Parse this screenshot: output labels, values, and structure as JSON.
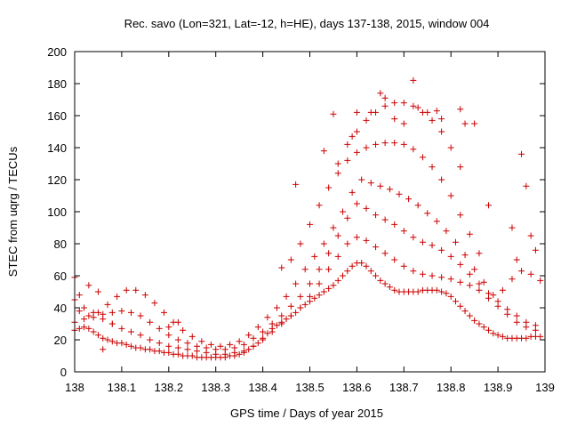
{
  "chart_data": {
    "type": "scatter",
    "title": "Rec. savo (Lon=321, Lat=-12, h=HE), days 137-138, 2015, window 004",
    "xlabel": "GPS time / Days of year 2015",
    "ylabel": "STEC from uqrg / TECUs",
    "xlim": [
      138,
      139
    ],
    "ylim": [
      0,
      200
    ],
    "x_ticks": [
      138,
      138.1,
      138.2,
      138.3,
      138.4,
      138.5,
      138.6,
      138.7,
      138.8,
      138.9,
      139
    ],
    "x_tick_labels": [
      "138",
      "138.1",
      "138.2",
      "138.3",
      "138.4",
      "138.5",
      "138.6",
      "138.7",
      "138.8",
      "138.9",
      "139"
    ],
    "y_ticks": [
      0,
      20,
      40,
      60,
      80,
      100,
      120,
      140,
      160,
      180,
      200
    ],
    "y_tick_labels": [
      "0",
      "20",
      "40",
      "60",
      "80",
      "100",
      "120",
      "140",
      "160",
      "180",
      "200"
    ],
    "grid": false,
    "marker": "+",
    "color": "#cc0000",
    "series": [
      {
        "x": [
          138.0,
          138.01,
          138.02,
          138.03,
          138.04,
          138.05,
          138.06,
          138.07,
          138.08,
          138.09,
          138.1,
          138.11,
          138.12,
          138.13,
          138.14,
          138.15,
          138.16,
          138.17,
          138.18,
          138.19,
          138.2,
          138.21,
          138.22,
          138.23,
          138.24,
          138.25,
          138.26,
          138.27,
          138.28,
          138.29,
          138.3,
          138.31,
          138.32,
          138.33,
          138.34,
          138.35,
          138.36,
          138.37,
          138.38,
          138.39,
          138.4,
          138.41,
          138.42,
          138.43,
          138.44,
          138.45,
          138.46,
          138.47,
          138.48,
          138.49,
          138.5,
          138.51,
          138.52,
          138.53,
          138.54,
          138.55,
          138.56,
          138.57,
          138.58,
          138.59,
          138.6,
          138.61,
          138.62,
          138.63,
          138.64,
          138.65,
          138.66,
          138.67,
          138.68,
          138.69,
          138.7,
          138.71,
          138.72,
          138.73,
          138.74,
          138.75,
          138.76,
          138.77,
          138.78,
          138.79,
          138.8,
          138.81,
          138.82,
          138.83,
          138.84,
          138.85,
          138.86,
          138.87,
          138.88,
          138.89,
          138.9,
          138.91,
          138.92,
          138.93,
          138.94,
          138.95,
          138.96,
          138.97,
          138.98,
          138.99
        ],
        "y": [
          26,
          27,
          28,
          27,
          25,
          23,
          21,
          20,
          19,
          18,
          18,
          17,
          16,
          15,
          15,
          14,
          14,
          13,
          13,
          12,
          12,
          11,
          11,
          10,
          10,
          10,
          9,
          9,
          9,
          9,
          9,
          9,
          9,
          10,
          10,
          11,
          12,
          14,
          16,
          18,
          21,
          24,
          27,
          29,
          31,
          33,
          35,
          37,
          40,
          42,
          44,
          46,
          48,
          50,
          52,
          54,
          57,
          60,
          63,
          66,
          68,
          68,
          66,
          63,
          60,
          57,
          55,
          53,
          51,
          50,
          50,
          50,
          50,
          50,
          51,
          51,
          51,
          51,
          50,
          49,
          47,
          44,
          41,
          38,
          35,
          32,
          30,
          28,
          26,
          24,
          23,
          22,
          21,
          21,
          21,
          21,
          21,
          22,
          22,
          22
        ]
      },
      {
        "x": [
          138.0,
          138.02,
          138.04,
          138.06,
          138.08,
          138.1,
          138.12,
          138.14,
          138.16,
          138.18,
          138.2,
          138.22,
          138.24,
          138.26,
          138.28,
          138.3,
          138.32,
          138.34,
          138.36,
          138.38,
          138.4,
          138.42,
          138.44,
          138.46,
          138.48,
          138.5,
          138.52,
          138.54,
          138.56,
          138.58,
          138.6,
          138.62,
          138.64,
          138.66,
          138.68,
          138.7,
          138.72,
          138.74,
          138.76,
          138.78,
          138.8,
          138.82,
          138.84,
          138.86,
          138.88,
          138.9,
          138.92,
          138.94,
          138.96,
          138.98
        ],
        "y": [
          31,
          33,
          34,
          33,
          30,
          27,
          25,
          23,
          20,
          18,
          16,
          15,
          14,
          13,
          12,
          11,
          11,
          12,
          13,
          16,
          20,
          25,
          30,
          35,
          40,
          47,
          55,
          64,
          72,
          80,
          84,
          82,
          78,
          74,
          70,
          66,
          63,
          61,
          60,
          59,
          58,
          56,
          54,
          51,
          46,
          41,
          36,
          31,
          28,
          26
        ]
      },
      {
        "x": [
          138.0,
          138.02,
          138.04,
          138.06,
          138.08,
          138.1,
          138.12,
          138.14,
          138.16,
          138.18,
          138.2,
          138.22,
          138.24,
          138.26,
          138.28,
          138.3,
          138.32,
          138.34,
          138.36,
          138.38,
          138.4,
          138.42,
          138.44,
          138.46,
          138.48,
          138.5,
          138.52,
          138.54,
          138.56,
          138.58,
          138.6,
          138.62,
          138.64,
          138.66,
          138.68,
          138.7,
          138.72,
          138.74,
          138.76,
          138.78,
          138.8,
          138.82,
          138.84,
          138.86,
          138.88,
          138.9,
          138.92,
          138.94,
          138.96,
          138.98
        ],
        "y": [
          45,
          40,
          37,
          36,
          37,
          38,
          37,
          35,
          31,
          27,
          23,
          20,
          18,
          16,
          15,
          14,
          14,
          15,
          17,
          21,
          25,
          30,
          35,
          41,
          47,
          55,
          64,
          74,
          85,
          96,
          105,
          102,
          98,
          95,
          92,
          88,
          84,
          81,
          79,
          76,
          72,
          67,
          61,
          55,
          49,
          44,
          39,
          35,
          31,
          29
        ]
      },
      {
        "x": [
          138.01,
          138.03,
          138.05,
          138.07,
          138.09,
          138.11,
          138.13,
          138.15,
          138.17,
          138.19,
          138.21,
          138.23,
          138.25,
          138.27,
          138.29,
          138.31,
          138.33,
          138.35,
          138.37,
          138.39,
          138.41,
          138.43,
          138.45,
          138.47,
          138.49,
          138.51,
          138.53,
          138.55,
          138.57,
          138.59,
          138.61,
          138.63,
          138.65,
          138.67,
          138.69,
          138.71,
          138.73,
          138.75,
          138.77,
          138.79,
          138.81,
          138.83,
          138.85,
          138.87,
          138.89
        ],
        "y": [
          38,
          35,
          37,
          42,
          47,
          51,
          51,
          48,
          43,
          37,
          31,
          26,
          22,
          19,
          17,
          16,
          17,
          19,
          23,
          28,
          34,
          40,
          47,
          55,
          64,
          72,
          80,
          90,
          100,
          112,
          120,
          118,
          116,
          114,
          111,
          108,
          104,
          99,
          94,
          88,
          81,
          73,
          64,
          56,
          48
        ]
      },
      {
        "x": [
          138.44,
          138.46,
          138.48,
          138.5,
          138.52,
          138.54,
          138.56,
          138.58,
          138.6,
          138.62,
          138.64,
          138.66,
          138.68,
          138.7,
          138.72,
          138.74,
          138.76,
          138.78,
          138.8,
          138.82,
          138.84,
          138.86
        ],
        "y": [
          65,
          70,
          80,
          92,
          104,
          115,
          124,
          132,
          137,
          140,
          142,
          143,
          143,
          142,
          139,
          134,
          128,
          120,
          110,
          98,
          86,
          74
        ]
      },
      {
        "x": [
          138.56,
          138.58,
          138.6,
          138.62,
          138.64,
          138.66,
          138.68,
          138.7,
          138.72,
          138.74,
          138.76,
          138.78,
          138.8,
          138.82
        ],
        "y": [
          130,
          142,
          150,
          157,
          162,
          166,
          168,
          168,
          166,
          162,
          157,
          150,
          140,
          128
        ]
      },
      {
        "x": [
          138.47,
          138.53,
          138.55,
          138.59,
          138.6,
          138.63,
          138.65,
          138.66,
          138.68,
          138.7,
          138.72,
          138.73,
          138.75,
          138.77,
          138.78,
          138.82,
          138.83,
          138.85,
          138.88,
          138.93,
          138.94,
          138.95,
          138.96,
          138.97,
          138.98
        ],
        "y": [
          117,
          138,
          161,
          147,
          162,
          162,
          174,
          171,
          158,
          155,
          182,
          165,
          162,
          163,
          158,
          164,
          155,
          155,
          104,
          90,
          70,
          136,
          116,
          85,
          76
        ]
      },
      {
        "x": [
          138.0,
          138.01,
          138.03,
          138.05,
          138.06,
          138.08,
          138.2,
          138.22,
          138.91,
          138.93,
          138.95,
          138.97,
          138.99
        ],
        "y": [
          59,
          48,
          54,
          50,
          14,
          30,
          28,
          31,
          51,
          58,
          63,
          61,
          57
        ]
      }
    ]
  }
}
